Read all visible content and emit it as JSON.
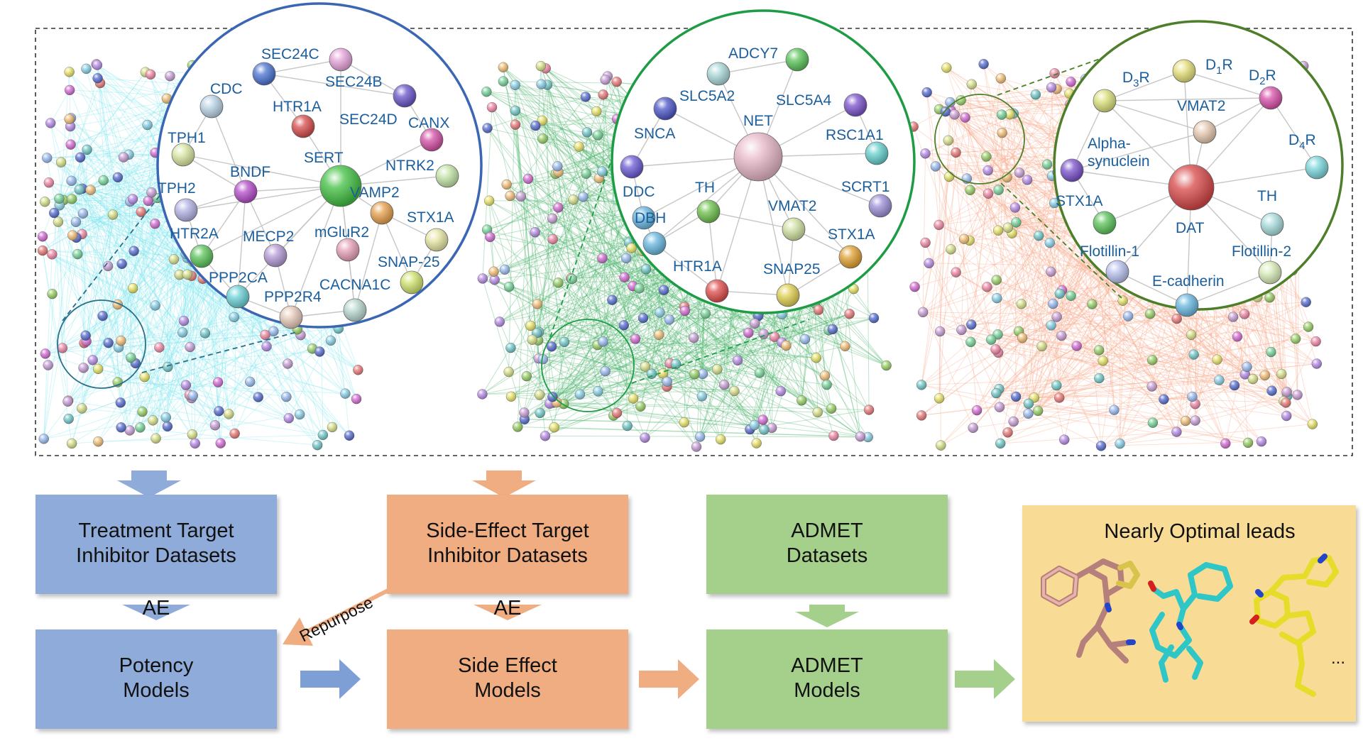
{
  "colors": {
    "network1_edges": "#7ee6ee",
    "network2_edges": "#49b36a",
    "network3_edges": "#f8a98a",
    "circle1": "#3a66b3",
    "circle2": "#1e9c45",
    "circle3": "#4d7f2a",
    "label": "#1b5e9c",
    "blue_box": "#8fabd9",
    "orange_box": "#f0ad81",
    "green_box": "#a5d08c",
    "yellow_box": "#f8dc96"
  },
  "network1": {
    "nodes": [
      "SEC24C",
      "CDC",
      "SEC24B",
      "HTR1A",
      "SEC24D",
      "CANX",
      "TPH1",
      "SERT",
      "NTRK2",
      "BNDF",
      "TPH2",
      "VAMP2",
      "STX1A",
      "HTR2A",
      "MECP2",
      "mGluR2",
      "SNAP-25",
      "PPP2CA",
      "PPP2R4",
      "CACNA1C"
    ]
  },
  "network2": {
    "nodes": [
      "ADCY7",
      "SLC5A2",
      "SLC5A4",
      "NET",
      "SNCA",
      "RSC1A1",
      "DDC",
      "TH",
      "SCRT1",
      "VMAT2",
      "DBH",
      "STX1A",
      "HTR1A",
      "SNAP25"
    ]
  },
  "network3": {
    "nodes": [
      {
        "label": "D",
        "sub": "3",
        "suffix": "R"
      },
      {
        "label": "D",
        "sub": "1",
        "suffix": "R"
      },
      {
        "label": "D",
        "sub": "2",
        "suffix": "R"
      },
      {
        "label": "VMAT2"
      },
      {
        "label": "Alpha-"
      },
      {
        "label": "synuclein"
      },
      {
        "label": "D",
        "sub": "4",
        "suffix": "R"
      },
      {
        "label": "STX1A"
      },
      {
        "label": "TH"
      },
      {
        "label": "DAT"
      },
      {
        "label": "Flotillin-1"
      },
      {
        "label": "Flotillin-2"
      },
      {
        "label": "E-cadherin"
      }
    ]
  },
  "pipeline": {
    "treatment_box": [
      "Treatment Target",
      "Inhibitor Datasets"
    ],
    "ae_left": "AE",
    "potency_box": [
      "Potency",
      "Models"
    ],
    "side_dataset_box": [
      "Side-Effect Target",
      "Inhibitor Datasets"
    ],
    "repurpose": "Repurpose",
    "ae_right": "AE",
    "side_model_box": [
      "Side Effect",
      "Models"
    ],
    "admet_dataset_box": [
      "ADMET",
      "Datasets"
    ],
    "admet_model_box": [
      "ADMET",
      "Models"
    ],
    "leads_title": "Nearly Optimal leads",
    "ellipsis": "..."
  }
}
